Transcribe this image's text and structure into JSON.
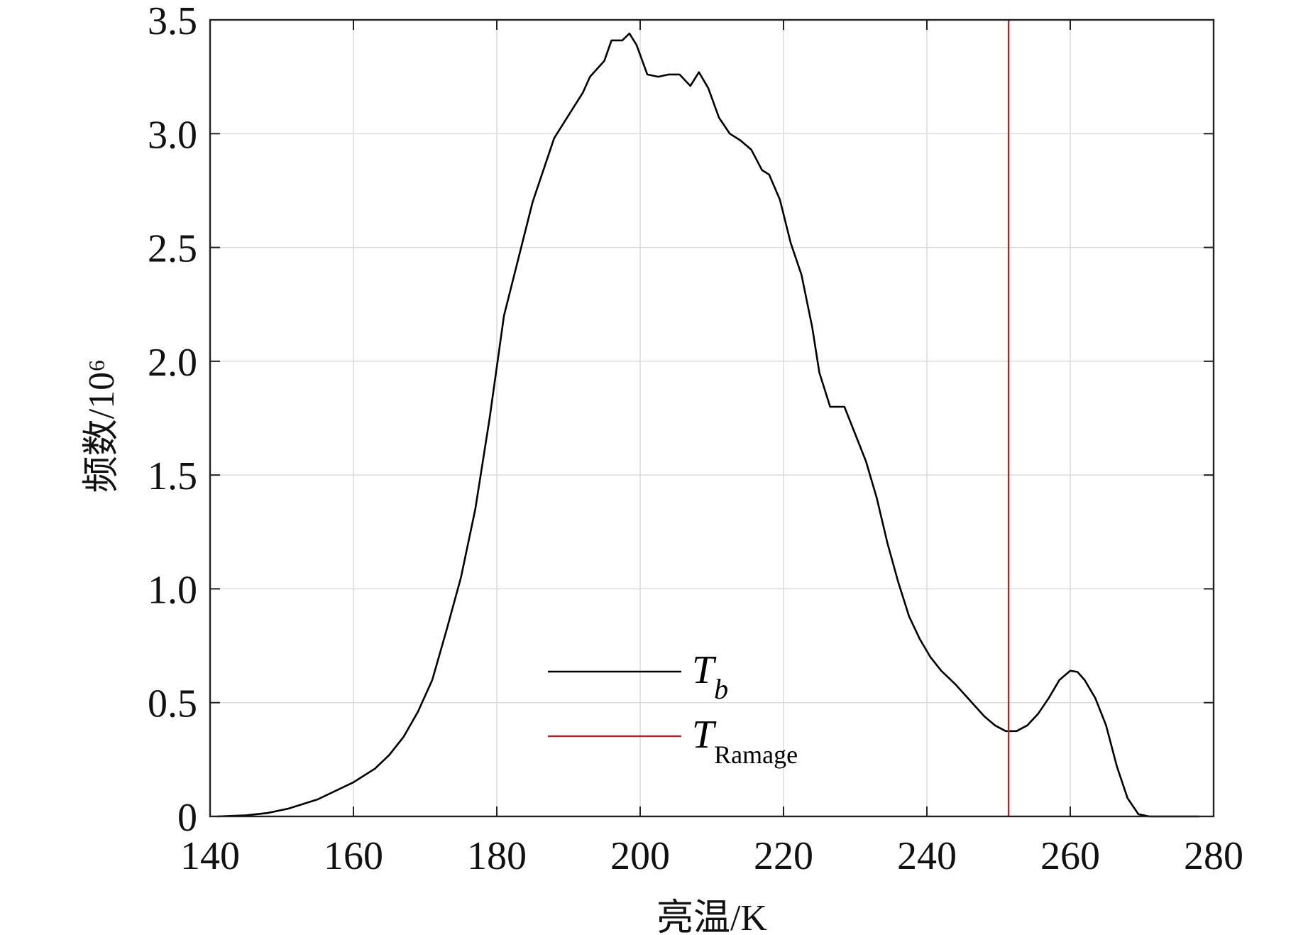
{
  "chart_data": {
    "type": "line",
    "xlabel": "亮温/K",
    "ylabel": "频数/10⁶",
    "xlim": [
      140,
      280
    ],
    "ylim": [
      0,
      3.5
    ],
    "xticks": [
      "140",
      "160",
      "180",
      "200",
      "220",
      "240",
      "260",
      "280"
    ],
    "yticks": [
      "0",
      "0.5",
      "1.0",
      "1.5",
      "2.0",
      "2.5",
      "3.0",
      "3.5"
    ],
    "grid": true,
    "legend_position": "bottom-center",
    "series": [
      {
        "name": "T",
        "subscript": "b",
        "color": "#000000",
        "x": [
          141,
          145,
          148,
          151,
          155,
          160,
          163,
          165,
          167,
          169,
          171,
          173,
          175,
          177,
          179,
          181,
          183,
          185,
          188,
          190,
          192,
          193,
          195,
          196,
          197.5,
          198.5,
          199.5,
          201,
          202.5,
          204,
          205.5,
          207,
          208.2,
          209.5,
          211,
          212.5,
          214,
          215.5,
          217,
          218,
          219.5,
          221,
          222.5,
          224,
          225,
          226.5,
          228.5,
          230,
          231.5,
          233,
          234.5,
          236,
          237.5,
          239,
          240.5,
          242,
          244,
          246,
          248,
          249.5,
          251,
          252.5,
          254,
          255.5,
          257,
          258.5,
          260,
          261,
          262,
          263.5,
          265,
          266.5,
          268,
          269.5,
          271,
          278
        ],
        "y": [
          0,
          0.005,
          0.015,
          0.035,
          0.075,
          0.15,
          0.21,
          0.27,
          0.35,
          0.46,
          0.6,
          0.82,
          1.05,
          1.35,
          1.75,
          2.2,
          2.45,
          2.7,
          2.98,
          3.08,
          3.18,
          3.25,
          3.32,
          3.41,
          3.41,
          3.44,
          3.39,
          3.26,
          3.25,
          3.26,
          3.26,
          3.21,
          3.27,
          3.2,
          3.07,
          3.0,
          2.97,
          2.93,
          2.84,
          2.82,
          2.71,
          2.52,
          2.38,
          2.15,
          1.95,
          1.8,
          1.8,
          1.68,
          1.56,
          1.4,
          1.2,
          1.03,
          0.88,
          0.78,
          0.7,
          0.64,
          0.58,
          0.51,
          0.44,
          0.4,
          0.375,
          0.375,
          0.4,
          0.45,
          0.52,
          0.6,
          0.64,
          0.635,
          0.6,
          0.52,
          0.4,
          0.22,
          0.08,
          0.01,
          0,
          0
        ]
      },
      {
        "name": "T",
        "subscript": "Ramage",
        "color": "#a52a2a",
        "type": "vline",
        "x": 251.4
      }
    ]
  }
}
